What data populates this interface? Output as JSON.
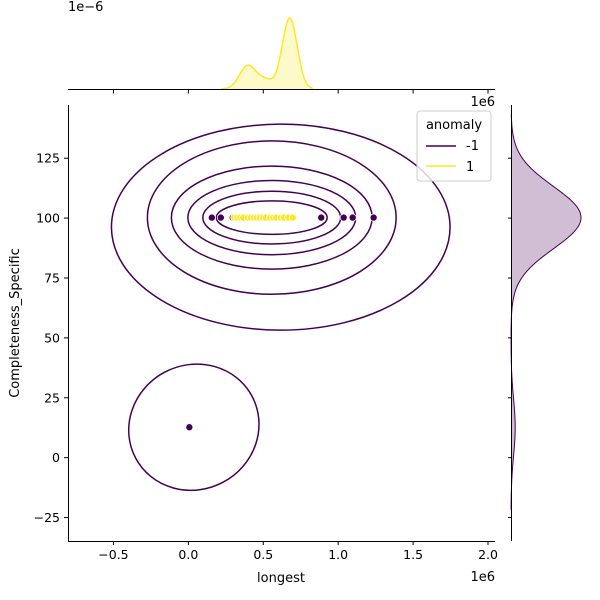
{
  "chart_data": {
    "type": "scatter",
    "kind": "jointplot",
    "xlabel": "longest",
    "ylabel": "Completeness_Specific",
    "x_offset_text": "1e6",
    "y_top_offset_text": "1e6",
    "marginal_top_offset_text": "1e−6",
    "xlim": [
      -0.8,
      2.05
    ],
    "ylim": [
      -35,
      147
    ],
    "x_ticks": [
      -0.5,
      0.0,
      0.5,
      1.0,
      1.5,
      2.0
    ],
    "x_tick_labels": [
      "−0.5",
      "0.0",
      "0.5",
      "1.0",
      "1.5",
      "2.0"
    ],
    "y_ticks": [
      -25,
      0,
      25,
      50,
      75,
      100,
      125
    ],
    "y_tick_labels": [
      "−25",
      "0",
      "25",
      "50",
      "75",
      "100",
      "125"
    ],
    "grid": false,
    "legend": {
      "title": "anomaly",
      "placement": "top-right",
      "entries": [
        {
          "label": "-1",
          "color": "#440154"
        },
        {
          "label": "1",
          "color": "#fde725"
        }
      ]
    },
    "series": [
      {
        "name": "-1",
        "color": "#440154",
        "points": [
          {
            "x": 0.01,
            "y": 12.5
          },
          {
            "x": 0.16,
            "y": 100
          },
          {
            "x": 0.22,
            "y": 100
          },
          {
            "x": 0.3,
            "y": 100
          },
          {
            "x": 0.47,
            "y": 100
          },
          {
            "x": 0.89,
            "y": 100
          },
          {
            "x": 1.04,
            "y": 100
          },
          {
            "x": 1.1,
            "y": 100
          },
          {
            "x": 1.24,
            "y": 100
          }
        ]
      },
      {
        "name": "1",
        "color": "#fde725",
        "points": [
          {
            "x": 0.31,
            "y": 100
          },
          {
            "x": 0.33,
            "y": 100
          },
          {
            "x": 0.35,
            "y": 100
          },
          {
            "x": 0.37,
            "y": 100
          },
          {
            "x": 0.4,
            "y": 100
          },
          {
            "x": 0.42,
            "y": 100
          },
          {
            "x": 0.44,
            "y": 100
          },
          {
            "x": 0.46,
            "y": 100
          },
          {
            "x": 0.48,
            "y": 100
          },
          {
            "x": 0.5,
            "y": 100
          },
          {
            "x": 0.52,
            "y": 100
          },
          {
            "x": 0.55,
            "y": 100
          },
          {
            "x": 0.57,
            "y": 100
          },
          {
            "x": 0.59,
            "y": 100
          },
          {
            "x": 0.62,
            "y": 100
          },
          {
            "x": 0.64,
            "y": 100
          },
          {
            "x": 0.67,
            "y": 100
          },
          {
            "x": 0.7,
            "y": 100
          }
        ]
      }
    ],
    "kde_contours": {
      "series": "-1",
      "color": "#440154",
      "upper_cluster": [
        {
          "cx": 0.62,
          "cy": 96,
          "rx": 1.13,
          "ry": 43.0
        },
        {
          "cx": 0.56,
          "cy": 100,
          "rx": 0.83,
          "ry": 32.0
        },
        {
          "cx": 0.56,
          "cy": 100,
          "rx": 0.67,
          "ry": 21.5
        },
        {
          "cx": 0.56,
          "cy": 100,
          "rx": 0.56,
          "ry": 15.5
        },
        {
          "cx": 0.56,
          "cy": 100,
          "rx": 0.46,
          "ry": 11.0
        },
        {
          "cx": 0.56,
          "cy": 100,
          "rx": 0.37,
          "ry": 7.0
        }
      ],
      "lower_cluster": [
        {
          "cx": 0.04,
          "cy": 12.5,
          "rx": 0.44,
          "ry": 26.0,
          "rotation_deg": -28
        }
      ]
    },
    "marginal_x": {
      "series": "1",
      "color": "#fde725",
      "peaks": [
        {
          "x": 0.4,
          "height": 0.33
        },
        {
          "x": 0.68,
          "height": 1.0
        }
      ]
    },
    "marginal_y": {
      "series": "-1",
      "color": "#440154",
      "peaks": [
        {
          "y": 100,
          "height": 1.0
        },
        {
          "y": 12.5,
          "height": 0.06
        }
      ]
    }
  }
}
